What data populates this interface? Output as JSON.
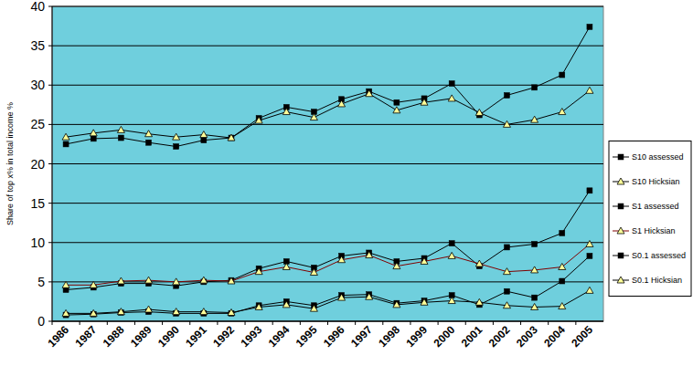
{
  "chart_data": {
    "type": "line",
    "y_label": "Share of top x% in total income %",
    "categories": [
      "1986",
      "1987",
      "1988",
      "1989",
      "1990",
      "1991",
      "1992",
      "1993",
      "1994",
      "1995",
      "1996",
      "1997",
      "1998",
      "1999",
      "2000",
      "2001",
      "2002",
      "2003",
      "2004",
      "2005"
    ],
    "series": [
      {
        "name": "S10 assessed",
        "color": "#000000",
        "marker": "square",
        "values": [
          22.5,
          23.2,
          23.3,
          22.7,
          22.2,
          23.0,
          23.3,
          25.8,
          27.2,
          26.6,
          28.2,
          29.2,
          27.8,
          28.3,
          30.2,
          26.2,
          28.7,
          29.7,
          31.3,
          37.4
        ]
      },
      {
        "name": "S10 Hicksian",
        "color": "#000000",
        "marker": "triangle",
        "values": [
          23.4,
          23.9,
          24.3,
          23.8,
          23.4,
          23.7,
          23.3,
          25.5,
          26.6,
          25.9,
          27.6,
          28.9,
          26.8,
          27.8,
          28.3,
          26.5,
          25.0,
          25.6,
          26.6,
          29.3
        ]
      },
      {
        "name": "S1 assessed",
        "color": "#000000",
        "marker": "square",
        "values": [
          4.0,
          4.3,
          4.8,
          4.8,
          4.5,
          5.0,
          5.2,
          6.7,
          7.6,
          6.8,
          8.3,
          8.7,
          7.6,
          8.0,
          9.9,
          7.0,
          9.4,
          9.8,
          11.2,
          16.6
        ]
      },
      {
        "name": "S1 Hicksian",
        "color": "#800000",
        "marker": "triangle",
        "values": [
          4.6,
          4.6,
          5.1,
          5.2,
          5.0,
          5.2,
          5.1,
          6.3,
          6.9,
          6.2,
          7.8,
          8.4,
          7.0,
          7.6,
          8.3,
          7.3,
          6.3,
          6.5,
          6.9,
          9.8
        ]
      },
      {
        "name": "S0.1 assessed",
        "color": "#000000",
        "marker": "square",
        "values": [
          0.8,
          0.9,
          1.1,
          1.2,
          1.0,
          1.0,
          1.0,
          2.0,
          2.5,
          2.0,
          3.3,
          3.4,
          2.3,
          2.6,
          3.3,
          2.1,
          3.8,
          3.0,
          5.1,
          8.3
        ]
      },
      {
        "name": "S0.1 Hicksian",
        "color": "#000000",
        "marker": "triangle",
        "values": [
          1.0,
          1.0,
          1.2,
          1.5,
          1.2,
          1.2,
          1.1,
          1.8,
          2.1,
          1.6,
          3.0,
          3.1,
          2.1,
          2.4,
          2.6,
          2.4,
          2.0,
          1.8,
          1.9,
          3.9
        ]
      }
    ],
    "ylim": [
      0,
      40
    ],
    "yticks": [
      0,
      5,
      10,
      15,
      20,
      25,
      30,
      35,
      40
    ],
    "grid": true,
    "legend": "right"
  }
}
